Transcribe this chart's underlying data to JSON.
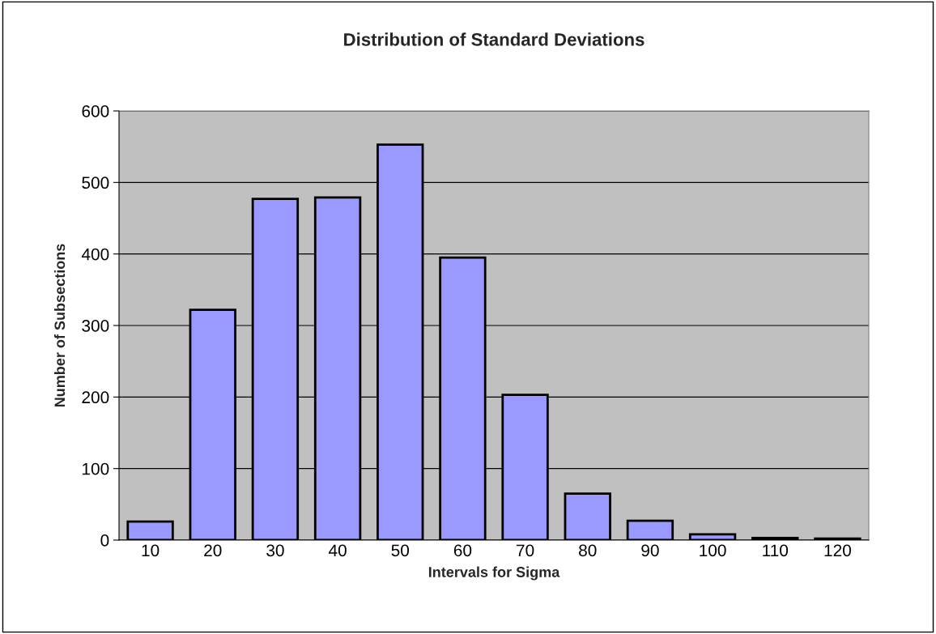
{
  "chart_data": {
    "type": "bar",
    "title": "Distribution of Standard Deviations",
    "xlabel": "Intervals for Sigma",
    "ylabel": "Number of Subsections",
    "categories": [
      "10",
      "20",
      "30",
      "40",
      "50",
      "60",
      "70",
      "80",
      "90",
      "100",
      "110",
      "120"
    ],
    "values": [
      26,
      322,
      477,
      479,
      553,
      395,
      203,
      65,
      27,
      8,
      3,
      2
    ],
    "color": "#9999ff",
    "ylim": [
      0,
      600
    ],
    "yticks": [
      0,
      100,
      200,
      300,
      400,
      500,
      600
    ],
    "grid": "y"
  }
}
